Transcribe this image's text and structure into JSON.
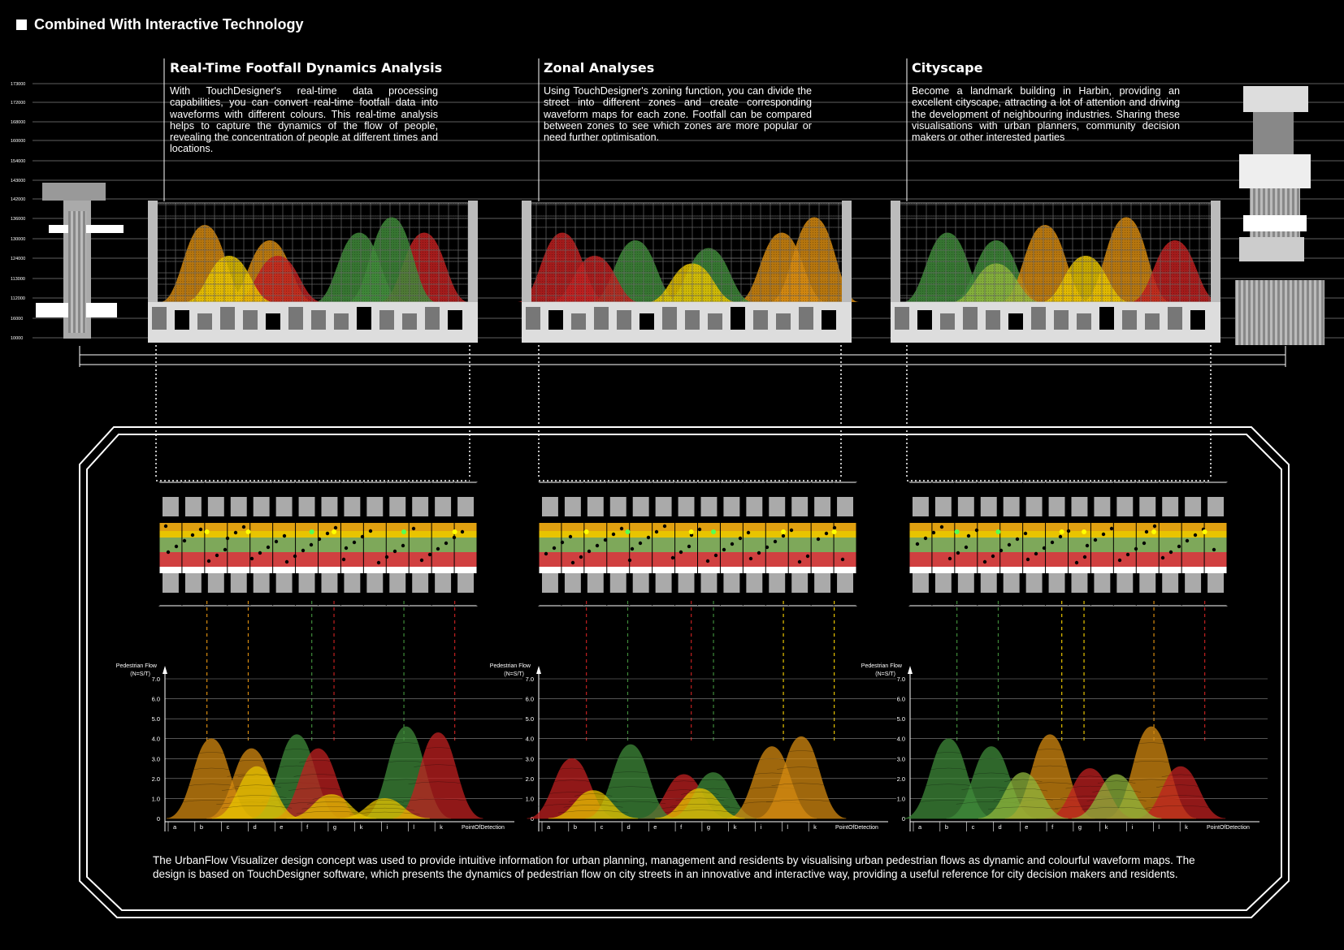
{
  "header": {
    "title": "Combined With Interactive Technology"
  },
  "sections": [
    {
      "title": "Real-Time Footfall Dynamics Analysis",
      "body": "With TouchDesigner's real-time data processing capabilities, you can convert real-time footfall data into waveforms with different colours. This real-time analysis helps to capture the dynamics of the flow of people, revealing the concentration of people at different times and locations."
    },
    {
      "title": "Zonal Analyses",
      "body": "Using TouchDesigner's zoning function, you can divide the street into different zones and create corresponding waveform maps for each zone. Footfall can be compared between zones to see which zones are more popular or need further optimisation."
    },
    {
      "title": "Cityscape",
      "body": "Become a landmark building in Harbin, providing an excellent cityscape, attracting a lot of attention and driving the development of neighbouring industries. Sharing these visualisations with urban planners, community decision makers or other interested parties"
    }
  ],
  "elevation_levels": [
    "173000",
    "172000",
    "168000",
    "160000",
    "154000",
    "143000",
    "142000",
    "136000",
    "130000",
    "124000",
    "113000",
    "112000",
    "16000",
    "10000"
  ],
  "footer": {
    "text": "The UrbanFlow Visualizer design concept was used to provide intuitive information for urban planning, management and residents by visualising urban pedestrian flows as dynamic and colourful waveform maps. The design is based on TouchDesigner software, which presents the dynamics of pedestrian flow on city streets in an innovative and interactive way, providing a useful reference for city decision makers and residents."
  },
  "colors": {
    "yellow": "#e8c400",
    "green": "#3f8a3a",
    "red": "#c02020",
    "orange": "#d58a10",
    "light_green": "#8fb63c"
  },
  "chart_data": [
    {
      "type": "area",
      "ylabel": "Pedestrian Flow (N=S/T)",
      "xlabel": "PointOfDetection",
      "categories": [
        "a",
        "b",
        "c",
        "d",
        "e",
        "f",
        "g",
        "k",
        "i",
        "l",
        "k"
      ],
      "yticks": [
        "7.0",
        "6.0",
        "5.0",
        "4.0",
        "3.0",
        "2.0",
        "1.0",
        "0"
      ],
      "ylim": [
        0,
        7
      ],
      "series": [
        {
          "color": "orange",
          "peaks": [
            [
              1.5,
              4.0
            ],
            [
              3.0,
              3.5
            ]
          ]
        },
        {
          "color": "green",
          "peaks": [
            [
              4.7,
              4.2
            ],
            [
              8.8,
              4.6
            ]
          ]
        },
        {
          "color": "red",
          "peaks": [
            [
              5.5,
              3.5
            ],
            [
              10.0,
              4.3
            ]
          ]
        },
        {
          "color": "yellow",
          "peaks": [
            [
              3.2,
              2.6
            ],
            [
              6.0,
              1.2
            ],
            [
              8.0,
              1.0
            ]
          ]
        }
      ]
    },
    {
      "type": "area",
      "ylabel": "Pedestrian Flow (N=S/T)",
      "xlabel": "PointOfDetection",
      "categories": [
        "a",
        "b",
        "c",
        "d",
        "e",
        "f",
        "g",
        "k",
        "i",
        "l",
        "k"
      ],
      "yticks": [
        "7.0",
        "6.0",
        "5.0",
        "4.0",
        "3.0",
        "2.0",
        "1.0",
        "0"
      ],
      "ylim": [
        0,
        7
      ],
      "series": [
        {
          "color": "red",
          "peaks": [
            [
              1.0,
              3.0
            ],
            [
              5.2,
              2.2
            ]
          ]
        },
        {
          "color": "green",
          "peaks": [
            [
              3.2,
              3.7
            ],
            [
              6.3,
              2.3
            ]
          ]
        },
        {
          "color": "orange",
          "peaks": [
            [
              8.5,
              3.6
            ],
            [
              9.6,
              4.1
            ]
          ]
        },
        {
          "color": "yellow",
          "peaks": [
            [
              1.8,
              1.4
            ],
            [
              5.8,
              1.5
            ]
          ]
        }
      ]
    },
    {
      "type": "area",
      "ylabel": "Pedestrian Flow (N=S/T)",
      "xlabel": "PointOfDetection",
      "categories": [
        "a",
        "b",
        "c",
        "d",
        "e",
        "f",
        "g",
        "k",
        "i",
        "l",
        "k"
      ],
      "yticks": [
        "7.0",
        "6.0",
        "5.0",
        "4.0",
        "3.0",
        "2.0",
        "1.0",
        "0"
      ],
      "ylim": [
        0,
        7
      ],
      "series": [
        {
          "color": "green",
          "peaks": [
            [
              1.2,
              4.0
            ],
            [
              2.8,
              3.6
            ]
          ]
        },
        {
          "color": "orange",
          "peaks": [
            [
              5.0,
              4.2
            ],
            [
              8.8,
              4.6
            ]
          ]
        },
        {
          "color": "red",
          "peaks": [
            [
              6.5,
              2.5
            ],
            [
              9.9,
              2.6
            ]
          ]
        },
        {
          "color": "light_green",
          "peaks": [
            [
              4.0,
              2.3
            ],
            [
              7.5,
              2.2
            ]
          ]
        }
      ]
    }
  ]
}
